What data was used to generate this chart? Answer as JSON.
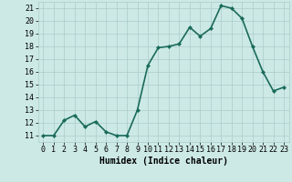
{
  "x": [
    0,
    1,
    2,
    3,
    4,
    5,
    6,
    7,
    8,
    9,
    10,
    11,
    12,
    13,
    14,
    15,
    16,
    17,
    18,
    19,
    20,
    21,
    22,
    23
  ],
  "y": [
    11.0,
    11.0,
    12.2,
    12.6,
    11.7,
    12.1,
    11.3,
    11.0,
    11.0,
    13.0,
    16.5,
    17.9,
    18.0,
    18.2,
    19.5,
    18.8,
    19.4,
    21.2,
    21.0,
    20.2,
    18.0,
    16.0,
    14.5,
    14.8
  ],
  "line_color": "#1a6b5a",
  "marker": "D",
  "markersize": 2.0,
  "linewidth": 1.2,
  "xlabel": "Humidex (Indice chaleur)",
  "xlim": [
    -0.5,
    23.5
  ],
  "ylim": [
    10.5,
    21.5
  ],
  "yticks": [
    11,
    12,
    13,
    14,
    15,
    16,
    17,
    18,
    19,
    20,
    21
  ],
  "xticks": [
    0,
    1,
    2,
    3,
    4,
    5,
    6,
    7,
    8,
    9,
    10,
    11,
    12,
    13,
    14,
    15,
    16,
    17,
    18,
    19,
    20,
    21,
    22,
    23
  ],
  "background_color": "#cce9e6",
  "grid_color": "#aaccca",
  "label_fontsize": 7,
  "tick_fontsize": 6
}
